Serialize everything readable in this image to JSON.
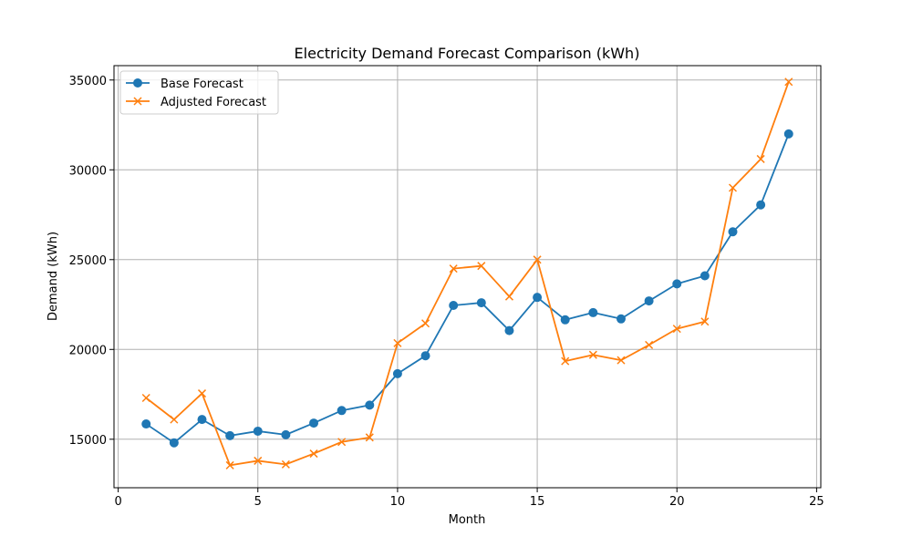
{
  "chart_data": {
    "type": "line",
    "title": "Electricity Demand Forecast Comparison (kWh)",
    "xlabel": "Month",
    "ylabel": "Demand (kWh)",
    "xlim": [
      -0.15,
      25.15
    ],
    "ylim": [
      12300,
      35800
    ],
    "xticks": [
      0,
      5,
      10,
      15,
      20,
      25
    ],
    "yticks": [
      15000,
      20000,
      25000,
      30000,
      35000
    ],
    "grid": true,
    "legend_position": "top-left",
    "x": [
      1,
      2,
      3,
      4,
      5,
      6,
      7,
      8,
      9,
      10,
      11,
      12,
      13,
      14,
      15,
      16,
      17,
      18,
      19,
      20,
      21,
      22,
      23,
      24
    ],
    "series": [
      {
        "name": "Base Forecast",
        "marker": "circle",
        "color": "#1f77b4",
        "values": [
          15850,
          14800,
          16100,
          15200,
          15450,
          15250,
          15900,
          16600,
          16900,
          18650,
          19650,
          22450,
          22600,
          21050,
          22900,
          21650,
          22050,
          21700,
          22700,
          23650,
          24100,
          26550,
          28050,
          32000
        ]
      },
      {
        "name": "Adjusted Forecast",
        "marker": "x",
        "color": "#ff7f0e",
        "values": [
          17300,
          16100,
          17550,
          13550,
          13800,
          13600,
          14200,
          14850,
          15100,
          20350,
          21450,
          24500,
          24650,
          22950,
          25000,
          19350,
          19700,
          19400,
          20250,
          21150,
          21550,
          29000,
          30600,
          34900
        ]
      }
    ]
  }
}
